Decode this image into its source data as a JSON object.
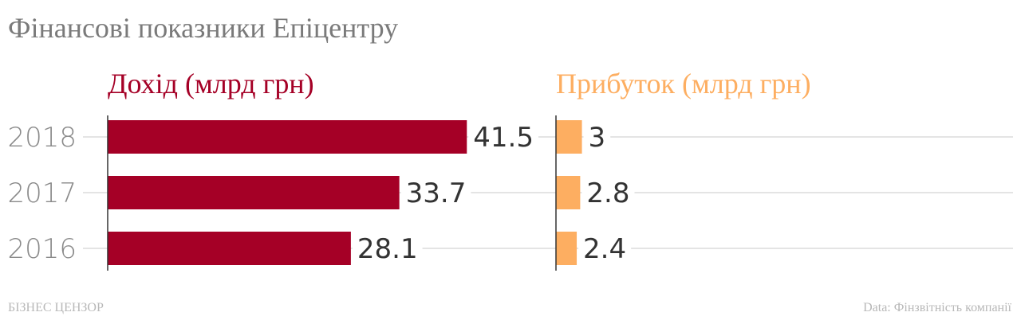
{
  "title": "Фінансові показники Епіцентру",
  "footer": {
    "source_brand": "БІЗНЕС ЦЕНЗОР",
    "data_credit": "Data: Фінзвітність компанії"
  },
  "colors": {
    "revenue": "#a50026",
    "profit": "#fdae61",
    "grid": "#dcdcdc",
    "axis": "#333333"
  },
  "chart_data": [
    {
      "type": "bar",
      "orientation": "horizontal",
      "title": "Дохід (млрд грн)",
      "categories": [
        "2018",
        "2017",
        "2016"
      ],
      "values": [
        41.5,
        33.7,
        28.1
      ],
      "xlim": [
        0,
        50
      ],
      "grid": true
    },
    {
      "type": "bar",
      "orientation": "horizontal",
      "title": "Прибуток (млрд грн)",
      "categories": [
        "2018",
        "2017",
        "2016"
      ],
      "values": [
        "3",
        "2.8",
        "2.4"
      ],
      "xlim": [
        0,
        50
      ],
      "grid": true
    }
  ]
}
